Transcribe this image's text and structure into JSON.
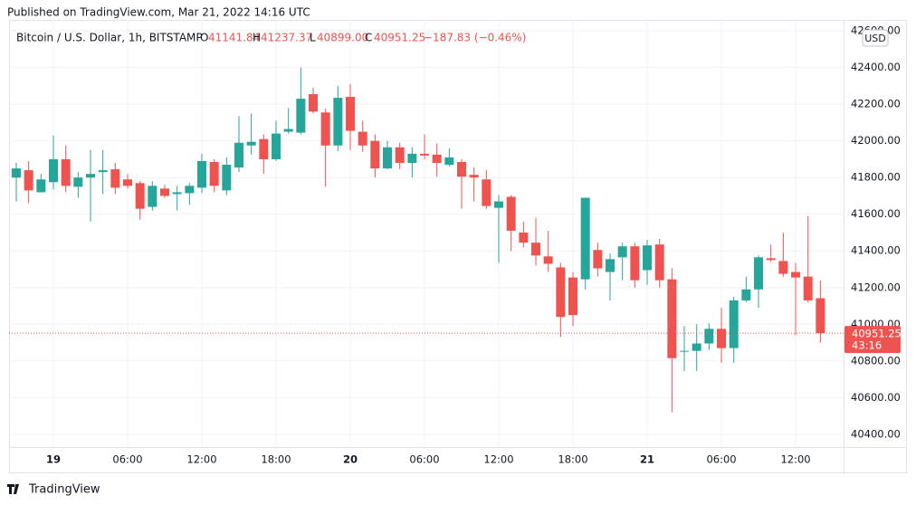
{
  "published": "Published on TradingView.com, Mar 21, 2022 14:16 UTC",
  "footer": "TradingView",
  "header": {
    "symbol": "Bitcoin / U.S. Dollar, 1h, BITSTAMP",
    "ohlc": [
      {
        "key": "O",
        "value": "41141.84"
      },
      {
        "key": "H",
        "value": "41237.37"
      },
      {
        "key": "L",
        "value": "40899.00"
      },
      {
        "key": "C",
        "value": "40951.25"
      }
    ],
    "change": "−187.83 (−0.46%)"
  },
  "chart_data": {
    "type": "candlestick",
    "currency": "USD",
    "categories": [
      null,
      null,
      null,
      "19",
      null,
      null,
      null,
      null,
      null,
      "06:00",
      null,
      null,
      null,
      null,
      null,
      "12:00",
      null,
      null,
      null,
      null,
      null,
      "18:00",
      null,
      null,
      null,
      null,
      null,
      "20",
      null,
      null,
      null,
      null,
      null,
      "06:00",
      null,
      null,
      null,
      null,
      null,
      "12:00",
      null,
      null,
      null,
      null,
      null,
      "18:00",
      null,
      null,
      null,
      null,
      null,
      "21",
      null,
      null,
      null,
      null,
      null,
      "06:00",
      null,
      null,
      null,
      null,
      null,
      "12:00",
      null,
      null
    ],
    "open": [
      41800,
      41840,
      41720,
      41775,
      41900,
      41750,
      41800,
      41830,
      41845,
      41790,
      41770,
      41640,
      41740,
      41710,
      41715,
      41745,
      41885,
      41730,
      41855,
      41975,
      42010,
      41900,
      42050,
      42045,
      42255,
      42155,
      41975,
      42240,
      42050,
      42000,
      41850,
      41965,
      41880,
      41930,
      41925,
      41870,
      41885,
      41815,
      41790,
      41635,
      41695,
      41500,
      41445,
      41370,
      41310,
      41255,
      41245,
      41405,
      41285,
      41365,
      41425,
      41295,
      41435,
      41245,
      40850,
      40855,
      40895,
      40975,
      40870,
      41130,
      41190,
      41360,
      41345,
      41285,
      41260,
      41141.84
    ],
    "high": [
      41880,
      41890,
      41820,
      42030,
      41975,
      41830,
      41950,
      41950,
      41880,
      41820,
      41780,
      41780,
      41760,
      41755,
      41770,
      41930,
      41900,
      41910,
      42135,
      42150,
      42035,
      42110,
      42180,
      42400,
      42290,
      42175,
      42300,
      42310,
      42110,
      42035,
      42000,
      41990,
      41965,
      42035,
      41985,
      41960,
      41900,
      41855,
      41840,
      41705,
      41705,
      41560,
      41580,
      41510,
      41335,
      41285,
      41690,
      41445,
      41385,
      41445,
      41445,
      41460,
      41465,
      41305,
      40990,
      41000,
      41005,
      41090,
      41150,
      41260,
      41375,
      41435,
      41500,
      41335,
      41590,
      41237.37
    ],
    "low": [
      41670,
      41660,
      41720,
      41735,
      41720,
      41690,
      41560,
      41710,
      41710,
      41740,
      41570,
      41620,
      41690,
      41620,
      41650,
      41715,
      41720,
      41705,
      41830,
      41925,
      41820,
      41890,
      42040,
      42035,
      42150,
      41750,
      41945,
      41950,
      41940,
      41800,
      41845,
      41845,
      41800,
      41900,
      41805,
      41860,
      41630,
      41670,
      41630,
      41335,
      41400,
      41420,
      41320,
      41285,
      40930,
      40990,
      41190,
      41260,
      41130,
      41240,
      41200,
      41215,
      41200,
      40520,
      40745,
      40745,
      40860,
      40790,
      40790,
      41120,
      41090,
      41340,
      41260,
      40940,
      41120,
      40899
    ],
    "close": [
      41850,
      41730,
      41790,
      41900,
      41755,
      41800,
      41820,
      41840,
      41745,
      41755,
      41630,
      41755,
      41700,
      41720,
      41755,
      41890,
      41755,
      41870,
      41990,
      41995,
      41900,
      42040,
      42065,
      42230,
      42160,
      41975,
      42235,
      42055,
      41975,
      41850,
      41965,
      41880,
      41930,
      41920,
      41880,
      41910,
      41805,
      41800,
      41645,
      41670,
      41510,
      41445,
      41375,
      41330,
      41040,
      41050,
      41690,
      41305,
      41355,
      41425,
      41240,
      41430,
      41240,
      40815,
      40855,
      40895,
      40975,
      40870,
      41130,
      41190,
      41365,
      41350,
      41275,
      41255,
      41130,
      40951.25
    ],
    "up_color": "#26a69a",
    "down_color": "#ef5350",
    "ylim": [
      40330,
      42660
    ],
    "yticks": [
      {
        "value": 40400,
        "label": "40400.00"
      },
      {
        "value": 40600,
        "label": "40600.00"
      },
      {
        "value": 40800,
        "label": "40800.00"
      },
      {
        "value": 41000,
        "label": "41000.00"
      },
      {
        "value": 41200,
        "label": "41200.00"
      },
      {
        "value": 41400,
        "label": "41400.00"
      },
      {
        "value": 41600,
        "label": "41600.00"
      },
      {
        "value": 41800,
        "label": "41800.00"
      },
      {
        "value": 42000,
        "label": "42000.00"
      },
      {
        "value": 42200,
        "label": "42200.00"
      },
      {
        "value": 42400,
        "label": "42400.00"
      },
      {
        "value": 42600,
        "label": "42600.00"
      }
    ],
    "grid": true,
    "price_tag": {
      "value": 40951.25,
      "label": "40951.25",
      "countdown": "43:16"
    }
  }
}
